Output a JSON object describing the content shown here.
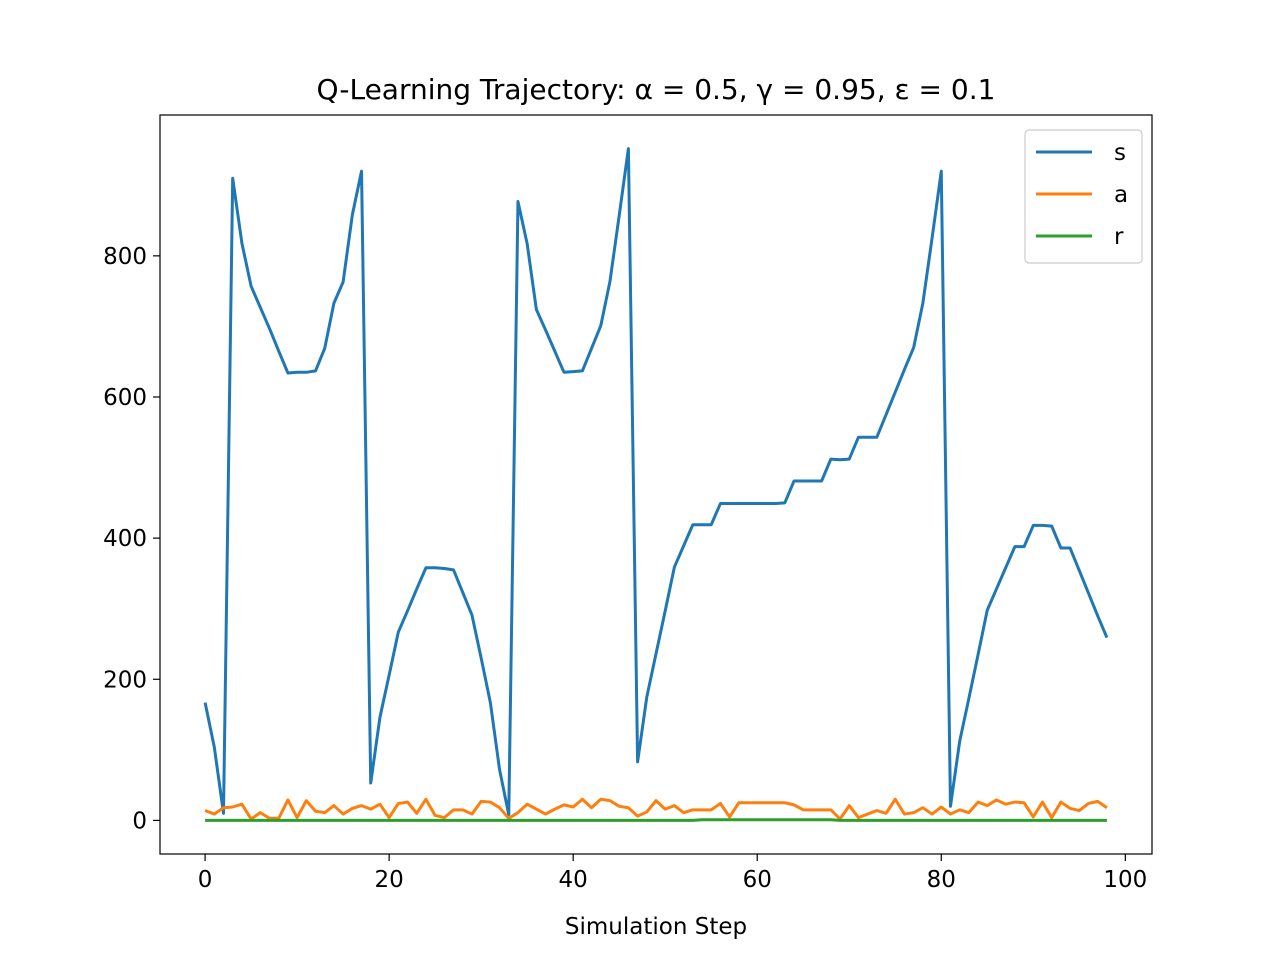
{
  "chart_data": {
    "type": "line",
    "title": "Q-Learning Trajectory: α = 0.5, γ = 0.95, ε = 0.1",
    "xlabel": "Simulation Step",
    "x": [
      0,
      1,
      2,
      3,
      4,
      5,
      6,
      7,
      8,
      9,
      10,
      11,
      12,
      13,
      14,
      15,
      16,
      17,
      18,
      19,
      20,
      21,
      22,
      23,
      24,
      25,
      26,
      27,
      28,
      29,
      30,
      31,
      32,
      33,
      34,
      35,
      36,
      37,
      38,
      39,
      40,
      41,
      42,
      43,
      44,
      45,
      46,
      47,
      48,
      49,
      50,
      51,
      52,
      53,
      54,
      55,
      56,
      57,
      58,
      59,
      60,
      61,
      62,
      63,
      64,
      65,
      66,
      67,
      68,
      69,
      70,
      71,
      72,
      73,
      74,
      75,
      76,
      77,
      78,
      79,
      80,
      81,
      82,
      83,
      84,
      85,
      86,
      87,
      88,
      89,
      90,
      91,
      92,
      93,
      94,
      95,
      96,
      97,
      98
    ],
    "series": [
      {
        "name": "s",
        "color": "#1f77b4",
        "values": [
          167,
          104,
          10,
          910,
          818,
          757,
          727,
          697,
          665,
          634,
          635,
          635,
          637,
          669,
          733,
          763,
          858,
          920,
          53,
          146,
          206,
          267,
          297,
          328,
          358,
          358,
          357,
          355,
          323,
          291,
          230,
          167,
          72,
          8,
          877,
          817,
          724,
          695,
          665,
          635,
          636,
          637,
          669,
          701,
          764,
          857,
          952,
          83,
          175,
          236,
          297,
          359,
          389,
          419,
          419,
          419,
          449,
          449,
          449,
          449,
          449,
          449,
          449,
          450,
          481,
          481,
          481,
          481,
          512,
          511,
          512,
          543,
          543,
          543,
          575,
          607,
          639,
          670,
          733,
          825,
          920,
          20,
          112,
          173,
          235,
          298,
          328,
          358,
          388,
          388,
          418,
          418,
          417,
          386,
          386,
          354,
          322,
          290,
          259
        ]
      },
      {
        "name": "a",
        "color": "#ff7f0e",
        "values": [
          14,
          9,
          18,
          19,
          23,
          2,
          11,
          3,
          3,
          29,
          4,
          28,
          13,
          11,
          21,
          9,
          17,
          21,
          16,
          23,
          4,
          24,
          26,
          10,
          30,
          7,
          4,
          15,
          15,
          9,
          27,
          26,
          18,
          3,
          11,
          23,
          16,
          9,
          16,
          22,
          19,
          30,
          18,
          30,
          28,
          20,
          18,
          6,
          12,
          28,
          16,
          21,
          11,
          15,
          15,
          15,
          24,
          5,
          25,
          25,
          25,
          25,
          25,
          25,
          22,
          15,
          15,
          15,
          15,
          2,
          21,
          4,
          9,
          14,
          10,
          30,
          9,
          11,
          18,
          9,
          19,
          9,
          15,
          11,
          26,
          21,
          29,
          23,
          26,
          25,
          5,
          26,
          4,
          26,
          17,
          14,
          24,
          27,
          18
        ]
      },
      {
        "name": "r",
        "color": "#2ca02c",
        "values": [
          0,
          0,
          0,
          0,
          0,
          0,
          0,
          0,
          0,
          0,
          0,
          0,
          0,
          0,
          0,
          0,
          0,
          0,
          0,
          0,
          0,
          0,
          0,
          0,
          0,
          0,
          0,
          0,
          0,
          0,
          0,
          0,
          0,
          0,
          0,
          0,
          0,
          0,
          0,
          0,
          0,
          0,
          0,
          0,
          0,
          0,
          0,
          0,
          0,
          0,
          0,
          0,
          0,
          0,
          1,
          1,
          1,
          1,
          1,
          1,
          1,
          1,
          1,
          1,
          1,
          1,
          1,
          1,
          1,
          0,
          0,
          0,
          0,
          0,
          0,
          0,
          0,
          0,
          0,
          0,
          0,
          0,
          0,
          0,
          0,
          0,
          0,
          0,
          0,
          0,
          0,
          0,
          0,
          0,
          0,
          0,
          0,
          0,
          0
        ]
      }
    ],
    "xlim": [
      -4.9,
      102.9
    ],
    "xticks": [
      0,
      20,
      40,
      60,
      80,
      100
    ],
    "ylim": [
      -47.6,
      999.6
    ],
    "yticks": [
      0,
      200,
      400,
      600,
      800
    ],
    "legend": "upper right",
    "grid": false
  }
}
